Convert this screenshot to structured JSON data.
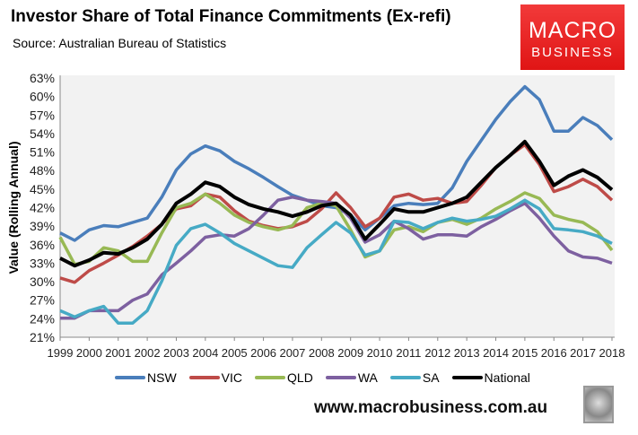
{
  "header": {
    "title": "Investor Share of Total Finance Commitments (Ex-refi)",
    "source": "Source: Australian Bureau of Statistics"
  },
  "logo": {
    "line1": "MACRO",
    "line2": "BUSINESS"
  },
  "footer": {
    "url": "www.macrobusiness.com.au"
  },
  "chart_data": {
    "type": "line",
    "title": "Investor Share of Total Finance Commitments (Ex-refi)",
    "xlabel": "",
    "ylabel": "Value (Rolling Annual)",
    "xlim": [
      1999,
      2018
    ],
    "ylim": [
      21,
      63
    ],
    "yticks": [
      21,
      24,
      27,
      30,
      33,
      36,
      39,
      42,
      45,
      48,
      51,
      54,
      57,
      60,
      63
    ],
    "xticks": [
      1999,
      2000,
      2001,
      2002,
      2003,
      2004,
      2005,
      2006,
      2007,
      2008,
      2009,
      2010,
      2011,
      2012,
      2013,
      2014,
      2015,
      2016,
      2017,
      2018
    ],
    "grid": false,
    "legend": "bottom",
    "x": [
      1999,
      1999.5,
      2000,
      2000.5,
      2001,
      2001.5,
      2002,
      2002.5,
      2003,
      2003.5,
      2004,
      2004.5,
      2005,
      2005.5,
      2006,
      2006.5,
      2007,
      2007.5,
      2008,
      2008.5,
      2009,
      2009.5,
      2010,
      2010.5,
      2011,
      2011.5,
      2012,
      2012.5,
      2013,
      2013.5,
      2014,
      2014.5,
      2015,
      2015.5,
      2016,
      2016.5,
      2017,
      2017.5,
      2018
    ],
    "series": [
      {
        "name": "NSW",
        "color": "#4a7ebb",
        "values": [
          37.9,
          36.7,
          38.4,
          39.1,
          38.9,
          39.6,
          40.3,
          43.7,
          48.1,
          50.7,
          52.0,
          51.2,
          49.5,
          48.3,
          46.9,
          45.4,
          44.0,
          43.2,
          42.3,
          42.0,
          40.8,
          38.4,
          40.3,
          42.3,
          42.7,
          42.5,
          42.7,
          45.2,
          49.5,
          52.9,
          56.3,
          59.2,
          61.6,
          59.5,
          54.4,
          54.4,
          56.6,
          55.3,
          53.0
        ]
      },
      {
        "name": "VIC",
        "color": "#be4b48",
        "values": [
          30.6,
          29.9,
          31.8,
          33.0,
          34.3,
          35.7,
          37.4,
          39.3,
          41.8,
          42.3,
          44.2,
          43.7,
          41.5,
          39.8,
          39.1,
          38.6,
          38.9,
          39.8,
          41.8,
          44.4,
          42.0,
          38.9,
          40.3,
          43.7,
          44.2,
          43.2,
          43.5,
          42.7,
          43.0,
          45.6,
          48.5,
          50.5,
          52.2,
          49.0,
          44.6,
          45.4,
          46.6,
          45.4,
          43.2
        ]
      },
      {
        "name": "QLD",
        "color": "#98b954",
        "values": [
          37.2,
          32.8,
          33.3,
          35.5,
          35.0,
          33.3,
          33.3,
          37.9,
          42.0,
          42.7,
          44.2,
          42.7,
          40.8,
          39.6,
          38.9,
          38.4,
          39.1,
          42.0,
          42.7,
          42.3,
          38.4,
          34.0,
          35.0,
          38.4,
          38.9,
          38.1,
          39.6,
          40.1,
          39.3,
          40.3,
          41.8,
          43.0,
          44.4,
          43.5,
          40.8,
          40.1,
          39.6,
          38.1,
          35.1
        ]
      },
      {
        "name": "WA",
        "color": "#7d60a0",
        "values": [
          24.1,
          24.1,
          25.3,
          25.3,
          25.3,
          27.0,
          28.0,
          31.1,
          33.0,
          35.0,
          37.2,
          37.6,
          37.4,
          38.6,
          40.8,
          43.2,
          43.7,
          43.2,
          43.0,
          42.7,
          40.3,
          36.4,
          37.6,
          39.8,
          38.6,
          36.9,
          37.6,
          37.6,
          37.4,
          38.9,
          40.1,
          41.5,
          42.7,
          40.3,
          37.4,
          35.0,
          34.0,
          33.8,
          33.0
        ]
      },
      {
        "name": "SA",
        "color": "#46aac5",
        "values": [
          25.3,
          24.3,
          25.3,
          26.0,
          23.3,
          23.3,
          25.3,
          30.1,
          35.9,
          38.6,
          39.3,
          37.9,
          36.2,
          35.0,
          33.8,
          32.6,
          32.3,
          35.5,
          37.6,
          39.6,
          37.9,
          34.3,
          35.0,
          39.8,
          39.6,
          38.6,
          39.6,
          40.3,
          39.8,
          40.1,
          40.6,
          41.8,
          43.2,
          41.8,
          38.6,
          38.4,
          38.1,
          37.4,
          36.2
        ]
      },
      {
        "name": "National",
        "color": "#000000",
        "values": [
          33.8,
          32.6,
          33.5,
          34.7,
          34.5,
          35.5,
          36.9,
          39.3,
          42.7,
          44.2,
          46.1,
          45.4,
          43.7,
          42.5,
          41.8,
          41.3,
          40.6,
          41.3,
          42.3,
          42.7,
          40.8,
          36.9,
          39.3,
          41.8,
          41.3,
          41.3,
          42.0,
          42.7,
          43.7,
          46.1,
          48.5,
          50.5,
          52.7,
          49.5,
          45.6,
          47.1,
          48.1,
          46.9,
          44.9
        ]
      }
    ]
  }
}
